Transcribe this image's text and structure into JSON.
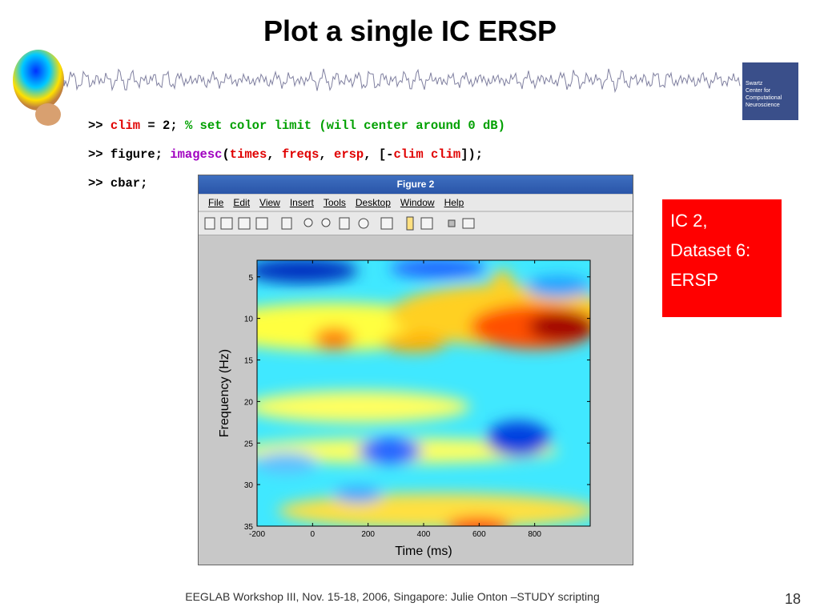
{
  "header": {
    "title": "Plot a single IC ERSP"
  },
  "logo": {
    "lines": [
      "Swartz",
      "Center for",
      "Computational",
      "Neuroscience"
    ]
  },
  "code": {
    "lines": [
      [
        ">> ",
        "clim",
        " = 2; ",
        "% set color limit (will center around 0 dB)"
      ],
      [
        ">> figure; ",
        "imagesc",
        "(",
        "times",
        ", ",
        "freqs",
        ", ",
        "ersp",
        ", [-",
        "clim",
        " ",
        "clim",
        "]);"
      ],
      [
        ">> cbar;"
      ]
    ]
  },
  "window": {
    "title": "Figure 2",
    "menus": [
      "File",
      "Edit",
      "View",
      "Insert",
      "Tools",
      "Desktop",
      "Window",
      "Help"
    ]
  },
  "chart_data": {
    "type": "image",
    "xlabel": "Time (ms)",
    "ylabel": "Frequency (Hz)",
    "xlim": [
      -200,
      1000
    ],
    "ylim": [
      3,
      35
    ],
    "xticks": [
      -200,
      0,
      200,
      400,
      600,
      800
    ],
    "yticks": [
      5,
      10,
      15,
      20,
      25,
      30,
      35
    ]
  },
  "callout": {
    "lines": [
      "IC 2,",
      "Dataset 6:",
      "ERSP"
    ]
  },
  "footer": {
    "text": "EEGLAB Workshop III, Nov. 15-18, 2006, Singapore: Julie Onton –STUDY scripting",
    "page": "18"
  }
}
